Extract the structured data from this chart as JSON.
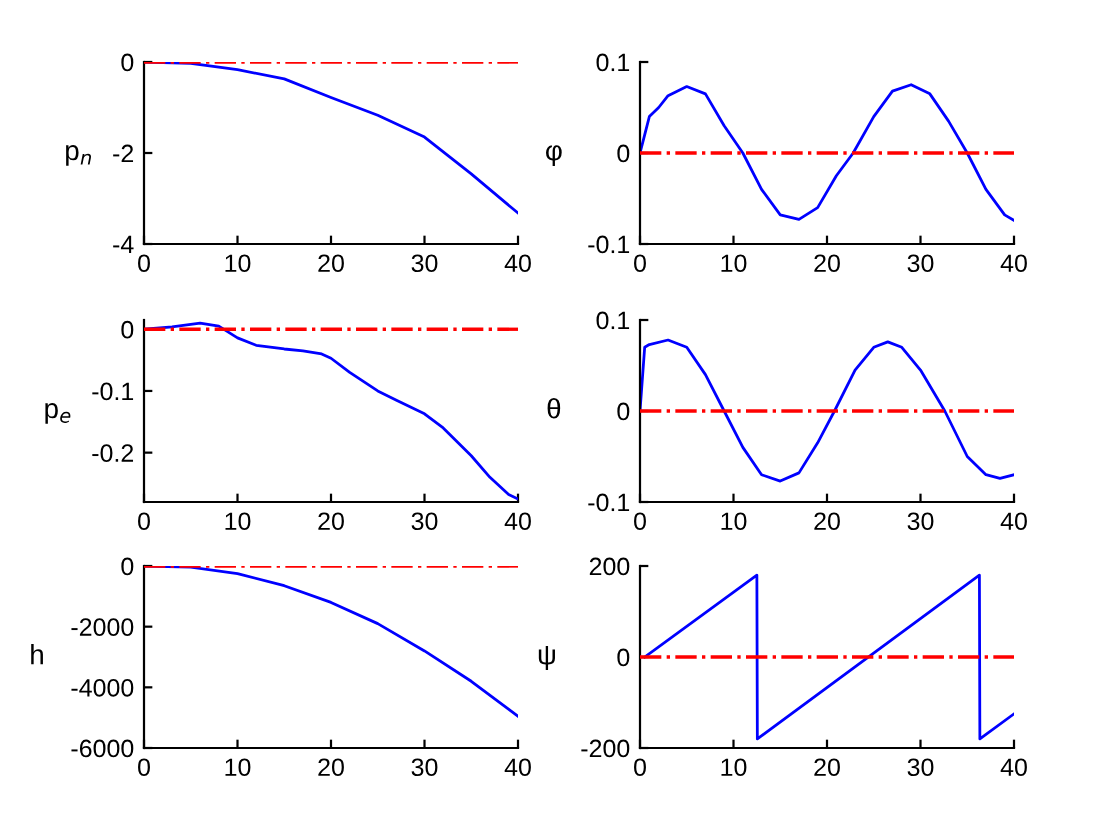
{
  "chart_data": [
    {
      "type": "line",
      "ylabel": "p$_{n}$",
      "x": [
        0,
        5,
        10,
        15,
        20,
        25,
        30,
        35,
        40
      ],
      "series": [
        {
          "color": "#0000ff",
          "values": [
            0,
            -0.03,
            -0.17,
            -0.37,
            -0.78,
            -1.17,
            -1.65,
            -2.46,
            -3.32
          ]
        }
      ],
      "xlim": [
        0,
        40
      ],
      "xticks": [
        0,
        10,
        20,
        30,
        40
      ],
      "ylim": [
        -4,
        0
      ],
      "yticks": [
        -4,
        -2,
        0
      ],
      "ref_lines": [
        {
          "axis": "y",
          "value": 0,
          "color": "#ff0000",
          "line_style": "dashed"
        }
      ],
      "grid": false,
      "legend": false
    },
    {
      "type": "line",
      "ylabel": "φ",
      "x": [
        0,
        0.5,
        1,
        2,
        3,
        5,
        7,
        9,
        11,
        13,
        15,
        17,
        19,
        21,
        22.8,
        25,
        27,
        29,
        31,
        33,
        35,
        37,
        39,
        40
      ],
      "series": [
        {
          "color": "#0000ff",
          "values": [
            0,
            0.02,
            0.04,
            0.05,
            0.063,
            0.073,
            0.065,
            0.03,
            0,
            -0.04,
            -0.068,
            -0.073,
            -0.06,
            -0.025,
            0,
            0.04,
            0.068,
            0.075,
            0.065,
            0.035,
            0,
            -0.04,
            -0.068,
            -0.074
          ]
        }
      ],
      "xlim": [
        0,
        40
      ],
      "xticks": [
        0,
        10,
        20,
        30,
        40
      ],
      "ylim": [
        -0.1,
        0.1
      ],
      "yticks": [
        -0.1,
        0,
        0.1
      ],
      "ref_lines": [
        {
          "axis": "y",
          "value": 0,
          "color": "#ff0000",
          "line_style": "dashed"
        }
      ],
      "grid": false,
      "legend": false
    },
    {
      "type": "line",
      "ylabel": "p$_{e}$",
      "x": [
        0,
        3,
        6,
        8,
        10,
        12,
        15,
        17,
        19,
        20,
        22,
        25,
        27,
        30,
        32,
        35,
        37,
        39,
        40
      ],
      "series": [
        {
          "color": "#0000ff",
          "values": [
            0,
            0.004,
            0.01,
            0.005,
            -0.014,
            -0.026,
            -0.032,
            -0.035,
            -0.04,
            -0.047,
            -0.07,
            -0.1,
            -0.115,
            -0.137,
            -0.16,
            -0.205,
            -0.24,
            -0.268,
            -0.275
          ]
        }
      ],
      "xlim": [
        0,
        40
      ],
      "xticks": [
        0,
        10,
        20,
        30,
        40
      ],
      "ylim": [
        -0.28,
        0.015
      ],
      "yticks": [
        -0.2,
        -0.1,
        0
      ],
      "ref_lines": [
        {
          "axis": "y",
          "value": 0,
          "color": "#ff0000",
          "line_style": "dashed"
        }
      ],
      "grid": false,
      "legend": false
    },
    {
      "type": "line",
      "ylabel": "θ",
      "x": [
        0,
        0.5,
        1,
        3,
        5,
        7,
        9,
        11,
        13,
        15,
        17,
        19,
        20.8,
        23,
        25,
        26.5,
        28,
        30,
        32.6,
        35,
        37,
        38.5,
        40
      ],
      "series": [
        {
          "color": "#0000ff",
          "values": [
            0,
            0.07,
            0.073,
            0.078,
            0.07,
            0.04,
            0,
            -0.04,
            -0.07,
            -0.077,
            -0.068,
            -0.035,
            0,
            0.045,
            0.07,
            0.076,
            0.07,
            0.045,
            0,
            -0.05,
            -0.07,
            -0.074,
            -0.07
          ]
        }
      ],
      "xlim": [
        0,
        40
      ],
      "xticks": [
        0,
        10,
        20,
        30,
        40
      ],
      "ylim": [
        -0.1,
        0.1
      ],
      "yticks": [
        -0.1,
        0,
        0.1
      ],
      "ref_lines": [
        {
          "axis": "y",
          "value": 0,
          "color": "#ff0000",
          "line_style": "dashed"
        }
      ],
      "grid": false,
      "legend": false
    },
    {
      "type": "line",
      "ylabel": "h",
      "x": [
        0,
        5,
        10,
        15,
        20,
        25,
        30,
        35,
        40
      ],
      "series": [
        {
          "color": "#0000ff",
          "values": [
            0,
            -40,
            -250,
            -650,
            -1200,
            -1900,
            -2800,
            -3800,
            -4950
          ]
        }
      ],
      "xlim": [
        0,
        40
      ],
      "xticks": [
        0,
        10,
        20,
        30,
        40
      ],
      "ylim": [
        -6000,
        0
      ],
      "yticks": [
        -6000,
        -4000,
        -2000,
        0
      ],
      "ref_lines": [
        {
          "axis": "y",
          "value": 0,
          "color": "#ff0000",
          "line_style": "dashed"
        }
      ],
      "grid": false,
      "legend": false
    },
    {
      "type": "line",
      "ylabel": "ψ",
      "x": [
        0.5,
        12.5,
        12.55,
        36.3,
        36.35,
        40
      ],
      "series": [
        {
          "color": "#0000ff",
          "values": [
            0,
            180,
            -180,
            180,
            -180,
            -125
          ]
        }
      ],
      "xlim": [
        0,
        40
      ],
      "xticks": [
        0,
        10,
        20,
        30,
        40
      ],
      "ylim": [
        -200,
        200
      ],
      "yticks": [
        -200,
        0,
        200
      ],
      "ref_lines": [
        {
          "axis": "y",
          "value": 0,
          "color": "#ff0000",
          "line_style": "dashed"
        }
      ],
      "grid": false,
      "legend": false
    }
  ]
}
